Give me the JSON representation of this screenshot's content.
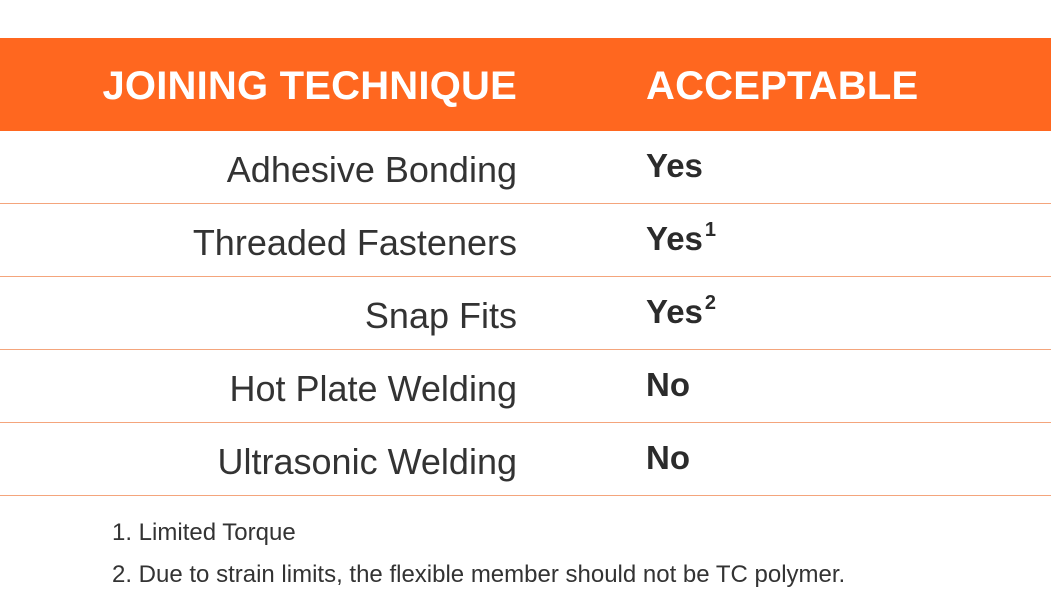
{
  "table": {
    "headers": {
      "technique": "JOINING TECHNIQUE",
      "acceptable": "ACCEPTABLE"
    },
    "rows": [
      {
        "technique": "Adhesive Bonding",
        "acceptable": "Yes",
        "note": ""
      },
      {
        "technique": "Threaded Fasteners",
        "acceptable": "Yes",
        "note": "1"
      },
      {
        "technique": "Snap Fits",
        "acceptable": "Yes",
        "note": "2"
      },
      {
        "technique": "Hot Plate Welding",
        "acceptable": "No",
        "note": ""
      },
      {
        "technique": "Ultrasonic Welding",
        "acceptable": "No",
        "note": ""
      }
    ]
  },
  "footnotes": [
    "1. Limited Torque",
    "2. Due to strain limits, the flexible member should not be TC polymer."
  ],
  "colors": {
    "header_bg": "#ff671f",
    "row_divider": "#f4a57c"
  }
}
